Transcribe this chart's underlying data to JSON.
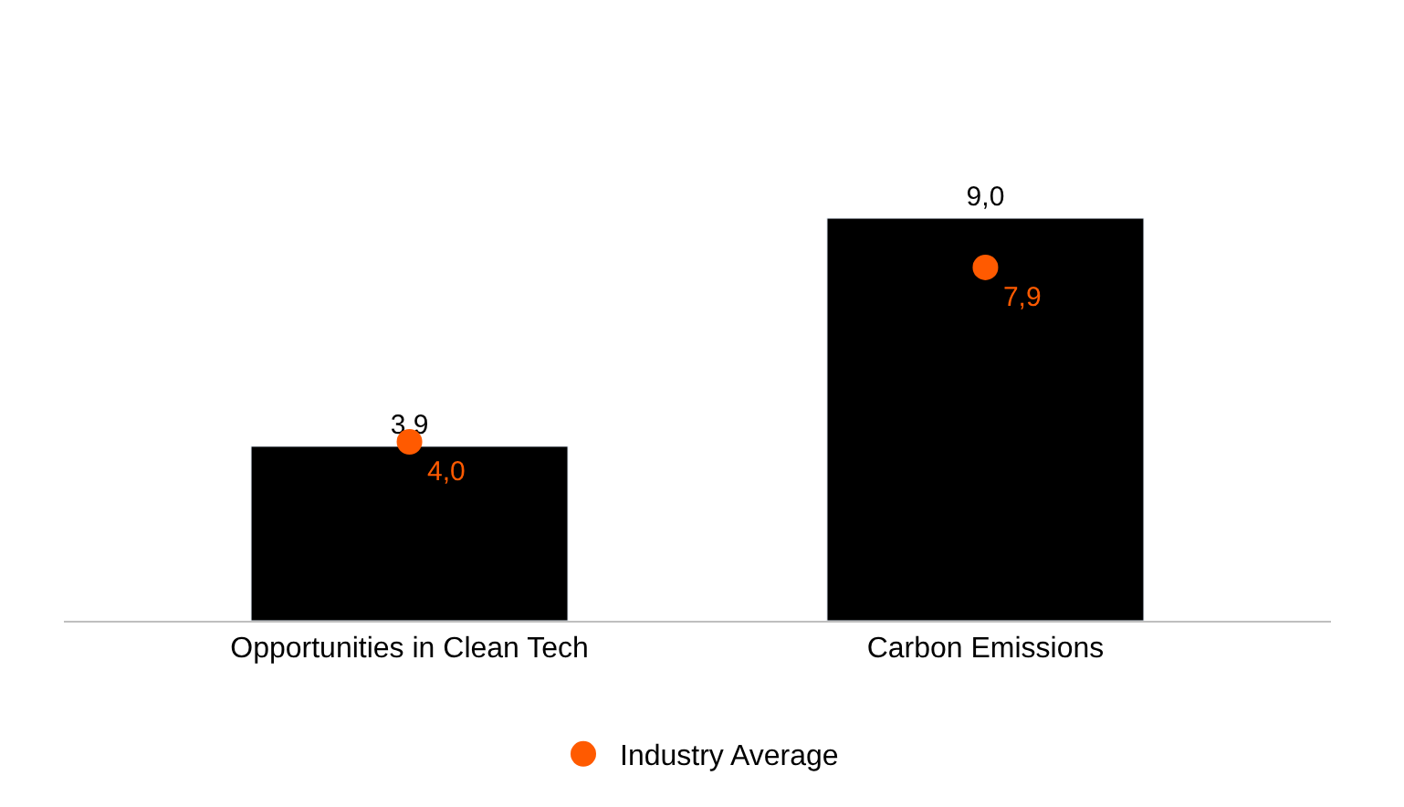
{
  "chart_data": {
    "type": "bar",
    "categories": [
      "Opportunities in Clean Tech",
      "Carbon Emissions"
    ],
    "series": [
      {
        "color": "#000000",
        "values": [
          3.9,
          9.0
        ],
        "value_labels": [
          "3,9",
          "9,0"
        ]
      },
      {
        "type": "scatter",
        "name": "Industry Average",
        "color": "#ff5a00",
        "marker": "circle",
        "values": [
          4.0,
          7.9
        ],
        "value_labels": [
          "4,0",
          "7,9"
        ]
      }
    ],
    "tick_labels": "x",
    "legend": "bottom"
  }
}
